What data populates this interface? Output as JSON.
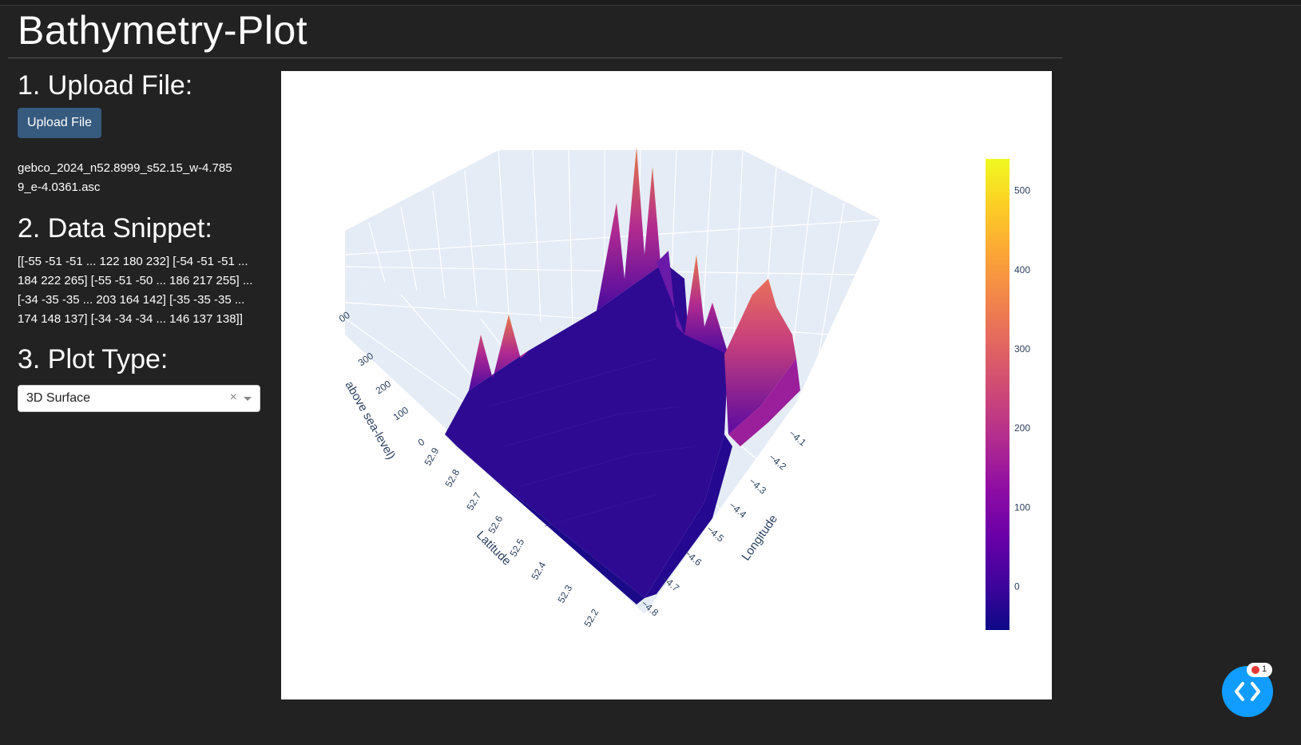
{
  "app": {
    "title": "Bathymetry-Plot"
  },
  "sections": {
    "upload": {
      "heading": "1. Upload File:",
      "button_label": "Upload File",
      "filename": "gebco_2024_n52.8999_s52.15_w-4.7859_e-4.0361.asc"
    },
    "snippet": {
      "heading": "2. Data Snippet:",
      "text": "[[-55 -51 -51 ... 122 180 232] [-54 -51 -51 ... 184 222 265] [-55 -51 -50 ... 186 217 255] ... [-34 -35 -35 ... 203 164 142] [-35 -35 -35 ... 174 148 137] [-34 -34 -34 ... 146 137 138]]"
    },
    "plot_type": {
      "heading": "3. Plot Type:",
      "selected": "3D Surface",
      "clear_icon": "×"
    }
  },
  "chart_data": {
    "type": "surface",
    "colorscale": "plasma",
    "colorbar": {
      "ticks": [
        500,
        400,
        300,
        200,
        100,
        0
      ],
      "range": [
        -55,
        540
      ]
    },
    "axes": {
      "z": {
        "title": "above sea-level)",
        "ticks": [
          "00",
          "300",
          "200",
          "100",
          "0"
        ]
      },
      "latitude": {
        "title": "Latitude",
        "ticks": [
          "52.9",
          "52.8",
          "52.7",
          "52.6",
          "52.5",
          "52.4",
          "52.3",
          "52.2"
        ]
      },
      "longitude": {
        "title": "Longitude",
        "ticks": [
          "−4.1",
          "−4.2",
          "−4.3",
          "−4.4",
          "−4.5",
          "−4.6",
          "−4.7",
          "−4.8"
        ]
      }
    }
  },
  "debug": {
    "error_count": "1"
  },
  "colors": {
    "background": "#222222",
    "button": "#375a7f",
    "fab": "#119dff"
  }
}
